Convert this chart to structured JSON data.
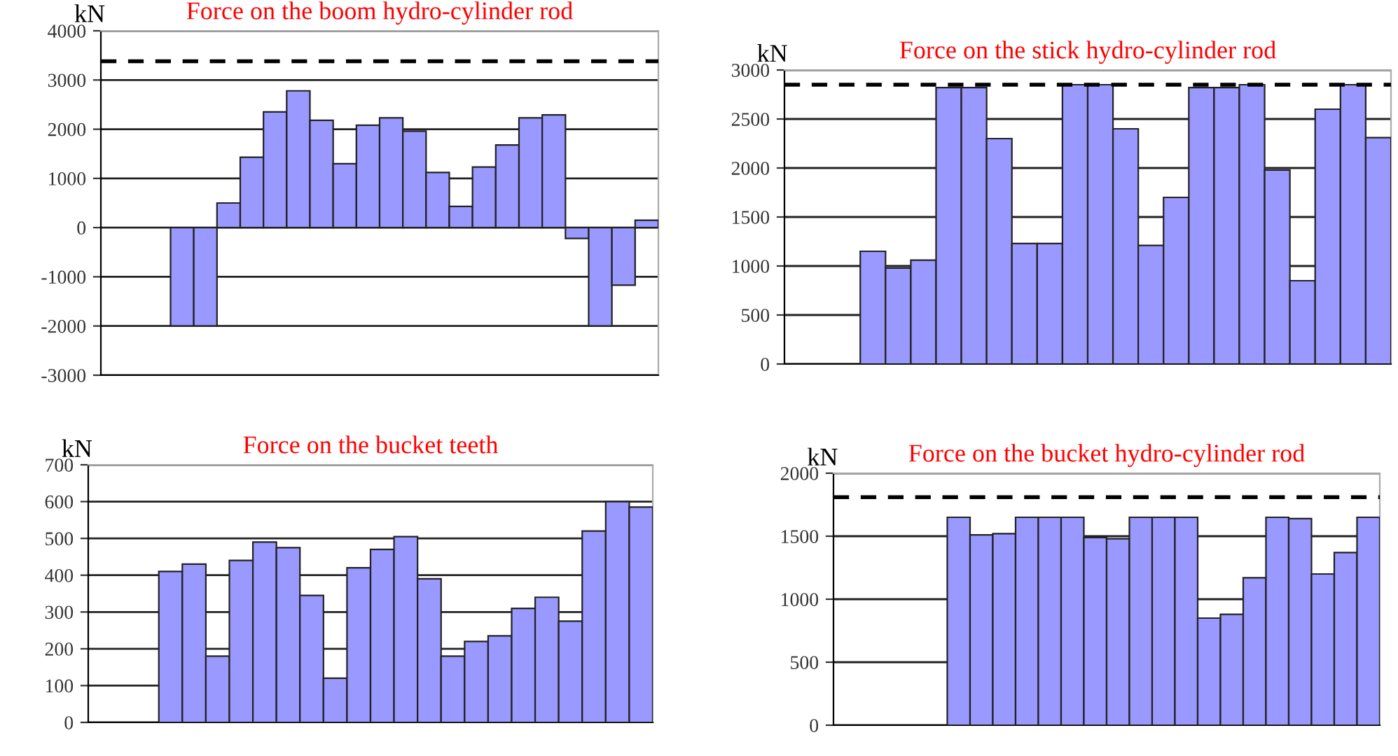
{
  "chart_data": [
    {
      "type": "bar",
      "title": "Force on the boom hydro-cylinder rod",
      "ylabel": "kN",
      "categories": [
        null,
        null,
        null,
        null,
        null,
        null,
        null,
        null,
        null,
        null,
        null,
        null,
        null,
        null,
        null,
        null,
        null,
        null,
        null,
        null,
        null,
        null,
        null,
        null
      ],
      "values": [
        null,
        null,
        null,
        -2000,
        -2000,
        500,
        1430,
        2350,
        2780,
        2180,
        1300,
        2080,
        2230,
        1960,
        1120,
        430,
        1230,
        1680,
        2230,
        2290,
        -220,
        -2000,
        -1170,
        150
      ],
      "color": "#9999ff",
      "ylim": [
        -3000,
        4000
      ],
      "yticks": [
        -3000,
        -2000,
        -1000,
        0,
        1000,
        2000,
        3000,
        4000
      ],
      "grid": "y",
      "ref_lines": [
        {
          "axis": "y",
          "value": 3380,
          "color": "#000000",
          "line_style": "dashed"
        }
      ]
    },
    {
      "type": "bar",
      "title": "Force on the stick hydro-cylinder rod",
      "ylabel": "kN",
      "categories": [
        null,
        null,
        null,
        null,
        null,
        null,
        null,
        null,
        null,
        null,
        null,
        null,
        null,
        null,
        null,
        null,
        null,
        null,
        null,
        null,
        null,
        null,
        null,
        null
      ],
      "values": [
        null,
        null,
        null,
        1150,
        980,
        1060,
        2820,
        2820,
        2300,
        1230,
        1230,
        2850,
        2850,
        2400,
        1210,
        1700,
        2820,
        2820,
        2850,
        1980,
        850,
        2600,
        2850,
        2310
      ],
      "color": "#9999ff",
      "ylim": [
        0,
        3000
      ],
      "yticks": [
        0,
        500,
        1000,
        1500,
        2000,
        2500,
        3000
      ],
      "grid": "y",
      "ref_lines": [
        {
          "axis": "y",
          "value": 2850,
          "color": "#000000",
          "line_style": "dashed"
        }
      ]
    },
    {
      "type": "bar",
      "title": "Force on the bucket teeth",
      "ylabel": "kN",
      "categories": [
        null,
        null,
        null,
        null,
        null,
        null,
        null,
        null,
        null,
        null,
        null,
        null,
        null,
        null,
        null,
        null,
        null,
        null,
        null,
        null,
        null,
        null,
        null,
        null
      ],
      "values": [
        null,
        null,
        null,
        410,
        430,
        180,
        440,
        490,
        475,
        345,
        120,
        420,
        470,
        505,
        390,
        180,
        220,
        235,
        310,
        340,
        275,
        520,
        600,
        585
      ],
      "color": "#9999ff",
      "ylim": [
        0,
        700
      ],
      "yticks": [
        0,
        100,
        200,
        300,
        400,
        500,
        600,
        700
      ],
      "grid": "y"
    },
    {
      "type": "bar",
      "title": "Force on the bucket hydro-cylinder rod",
      "ylabel": "kN",
      "categories": [
        null,
        null,
        null,
        null,
        null,
        null,
        null,
        null,
        null,
        null,
        null,
        null,
        null,
        null,
        null,
        null,
        null,
        null,
        null,
        null,
        null,
        null,
        null,
        null
      ],
      "values": [
        null,
        null,
        null,
        null,
        null,
        1650,
        1510,
        1520,
        1650,
        1650,
        1650,
        1490,
        1480,
        1650,
        1650,
        1650,
        850,
        880,
        1170,
        1650,
        1640,
        1200,
        1370,
        1650
      ],
      "color": "#9999ff",
      "ylim": [
        0,
        2000
      ],
      "yticks": [
        0,
        500,
        1000,
        1500,
        2000
      ],
      "grid": "y",
      "ref_lines": [
        {
          "axis": "y",
          "value": 1810,
          "color": "#000000",
          "line_style": "dashed"
        }
      ]
    }
  ]
}
